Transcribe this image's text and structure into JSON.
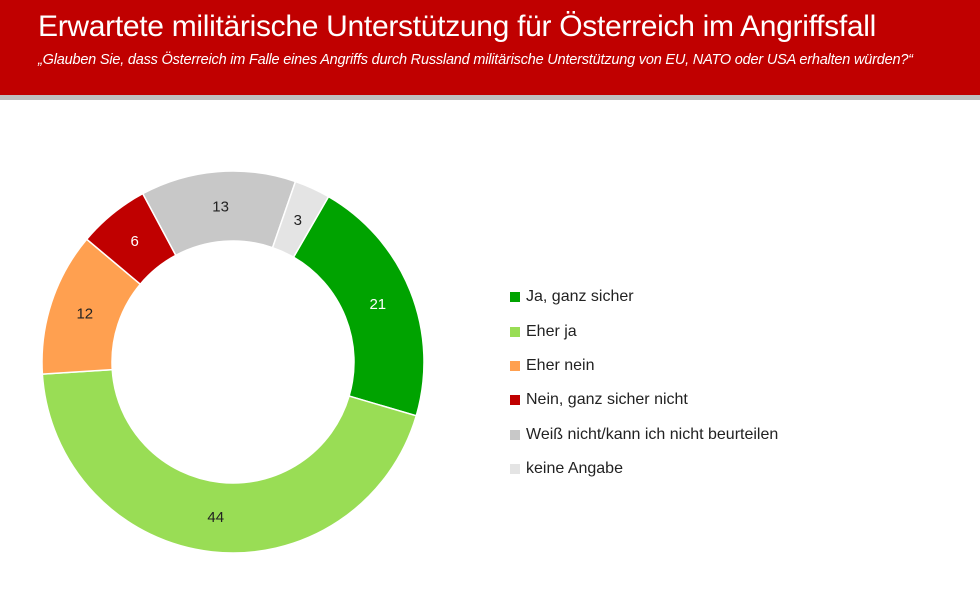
{
  "header": {
    "title": "Erwartete militärische Unterstützung für Österreich im Angriffsfall",
    "subtitle": "„Glauben Sie, dass Österreich im Falle eines Angriffs durch Russland militärische Unterstützung von EU, NATO oder USA erhalten würden?“"
  },
  "chart_data": {
    "type": "pie",
    "variant": "donut",
    "legend_position": "right",
    "categories": [
      "Ja, ganz sicher",
      "Eher ja",
      "Eher nein",
      "Nein, ganz sicher nicht",
      "Weiß nicht/kann ich nicht beurteilen",
      "keine Angabe"
    ],
    "values": [
      21,
      44,
      12,
      6,
      13,
      3
    ],
    "colors": [
      "#00a300",
      "#99dd55",
      "#ffa050",
      "#c00000",
      "#c8c8c8",
      "#e4e4e4"
    ],
    "label_colors": [
      "#ffffff",
      "#222222",
      "#222222",
      "#ffffff",
      "#222222",
      "#222222"
    ]
  }
}
